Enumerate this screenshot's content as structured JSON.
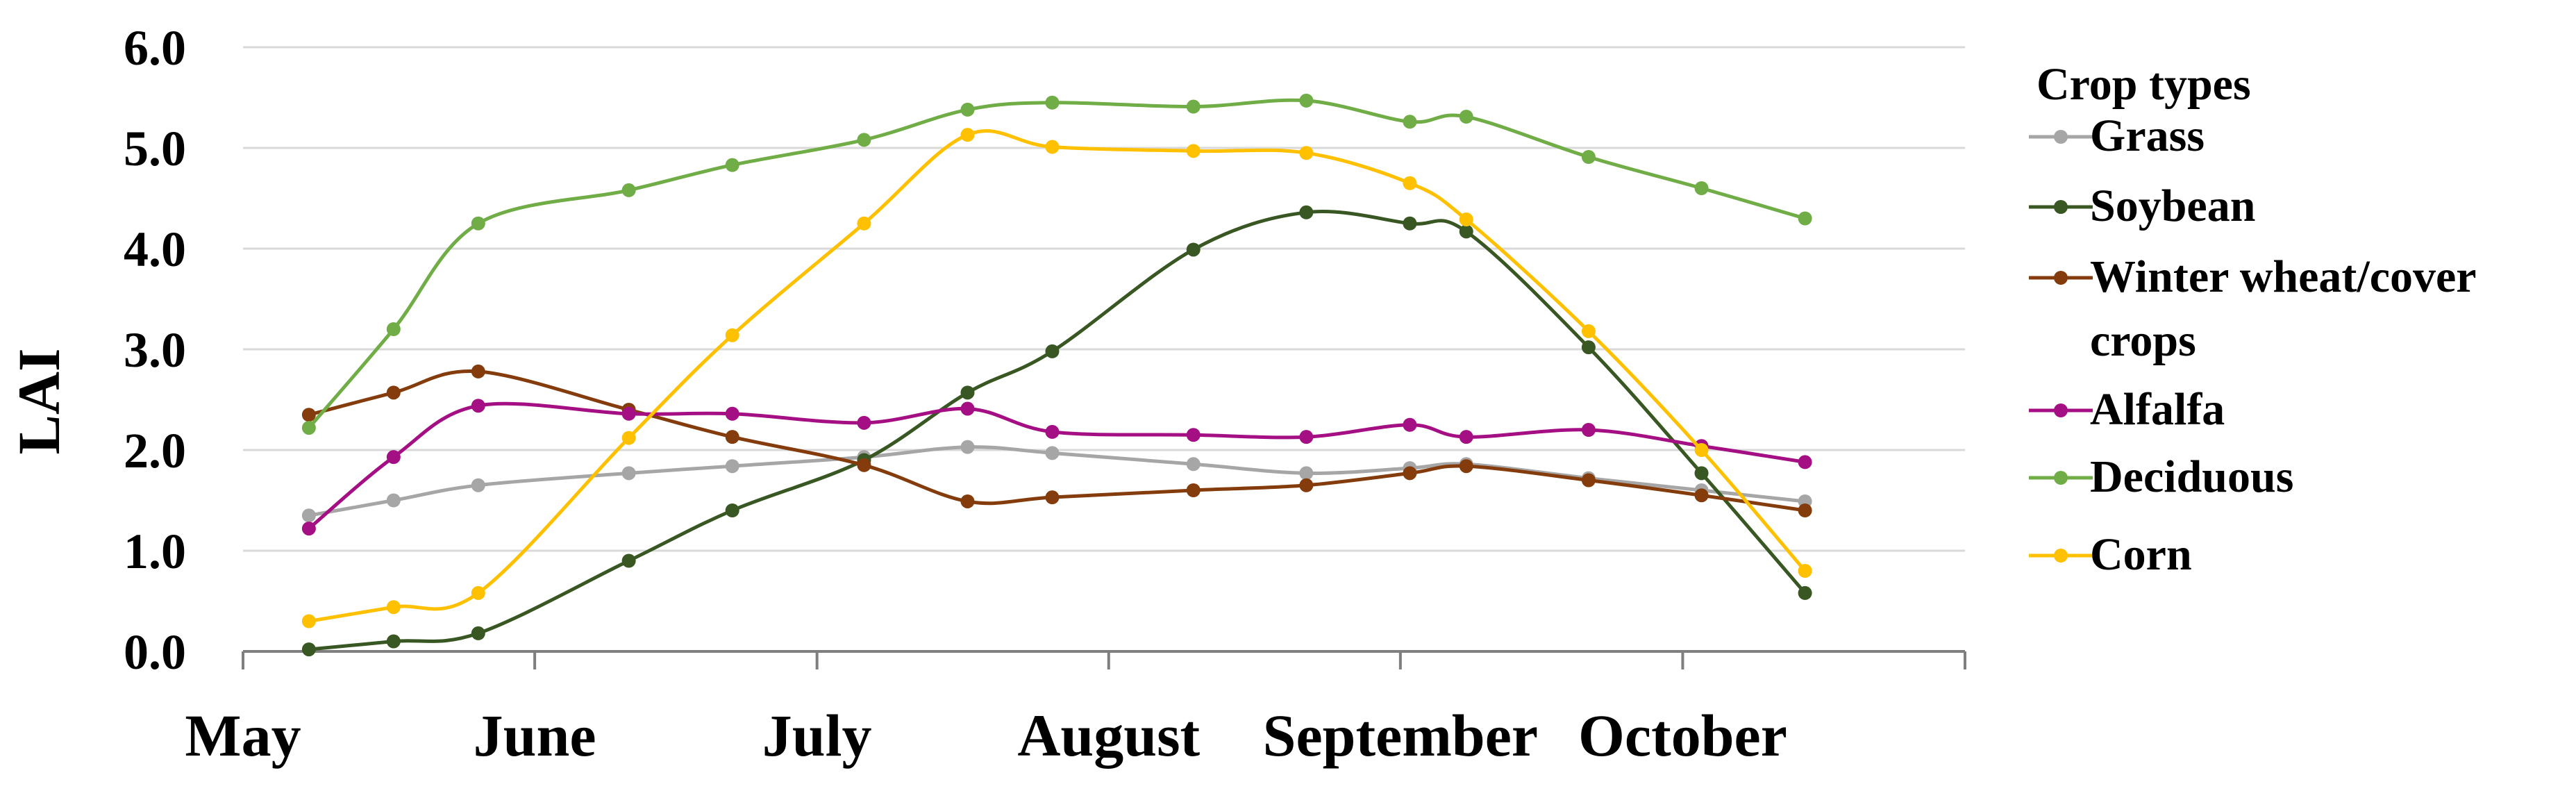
{
  "chart_data": {
    "type": "line",
    "title": "",
    "xlabel": "",
    "ylabel": "LAI",
    "ylim": [
      0,
      6
    ],
    "y_ticks": [
      "0.0",
      "1.0",
      "2.0",
      "3.0",
      "4.0",
      "5.0",
      "6.0"
    ],
    "x_range": [
      "2000-05-01",
      "2000-10-31"
    ],
    "month_ticks": [
      "2000-05-01",
      "2000-06-01",
      "2000-07-01",
      "2000-08-01",
      "2000-09-01",
      "2000-10-01",
      "2000-10-31"
    ],
    "x_tick_labels": [
      {
        "label": "May",
        "date": "2000-05-01"
      },
      {
        "label": "June",
        "date": "2000-06-01"
      },
      {
        "label": "July",
        "date": "2000-07-01"
      },
      {
        "label": "August",
        "date": "2000-08-01"
      },
      {
        "label": "September",
        "date": "2000-09-01"
      },
      {
        "label": "October",
        "date": "2000-10-01"
      }
    ],
    "grid": "horizontal",
    "legend": {
      "title": "Crop types",
      "position": "right"
    },
    "series": [
      {
        "name": "Grass",
        "color": "#a6a6a6",
        "x": [
          "2000-05-08",
          "2000-05-17",
          "2000-05-26",
          "2000-06-11",
          "2000-06-22",
          "2000-07-06",
          "2000-07-17",
          "2000-07-26",
          "2000-08-10",
          "2000-08-22",
          "2000-09-02",
          "2000-09-08",
          "2000-09-21",
          "2000-10-03",
          "2000-10-14"
        ],
        "y": [
          1.35,
          1.5,
          1.65,
          1.77,
          1.84,
          1.93,
          2.03,
          1.97,
          1.86,
          1.77,
          1.82,
          1.86,
          1.72,
          1.6,
          1.49
        ]
      },
      {
        "name": "Soybean",
        "color": "#385723",
        "x": [
          "2000-05-08",
          "2000-05-17",
          "2000-05-26",
          "2000-06-11",
          "2000-06-22",
          "2000-07-06",
          "2000-07-17",
          "2000-07-26",
          "2000-08-10",
          "2000-08-22",
          "2000-09-02",
          "2000-09-08",
          "2000-09-21",
          "2000-10-03",
          "2000-10-14"
        ],
        "y": [
          0.02,
          0.1,
          0.18,
          0.9,
          1.4,
          1.9,
          2.57,
          2.98,
          3.99,
          4.36,
          4.25,
          4.17,
          3.02,
          1.77,
          0.58
        ]
      },
      {
        "name": "Winter wheat/cover crops",
        "color": "#843c0c",
        "x": [
          "2000-05-08",
          "2000-05-17",
          "2000-05-26",
          "2000-06-11",
          "2000-06-22",
          "2000-07-06",
          "2000-07-17",
          "2000-07-26",
          "2000-08-10",
          "2000-08-22",
          "2000-09-02",
          "2000-09-08",
          "2000-09-21",
          "2000-10-03",
          "2000-10-14"
        ],
        "y": [
          2.35,
          2.57,
          2.78,
          2.4,
          2.13,
          1.85,
          1.49,
          1.53,
          1.6,
          1.65,
          1.77,
          1.84,
          1.7,
          1.55,
          1.4
        ]
      },
      {
        "name": "Alfalfa",
        "color": "#a50f84",
        "x": [
          "2000-05-08",
          "2000-05-17",
          "2000-05-26",
          "2000-06-11",
          "2000-06-22",
          "2000-07-06",
          "2000-07-17",
          "2000-07-26",
          "2000-08-10",
          "2000-08-22",
          "2000-09-02",
          "2000-09-08",
          "2000-09-21",
          "2000-10-03",
          "2000-10-14"
        ],
        "y": [
          1.22,
          1.93,
          2.44,
          2.36,
          2.36,
          2.27,
          2.41,
          2.18,
          2.15,
          2.13,
          2.25,
          2.13,
          2.2,
          2.04,
          1.88
        ]
      },
      {
        "name": "Deciduous",
        "color": "#70ad47",
        "x": [
          "2000-05-08",
          "2000-05-17",
          "2000-05-26",
          "2000-06-11",
          "2000-06-22",
          "2000-07-06",
          "2000-07-17",
          "2000-07-26",
          "2000-08-10",
          "2000-08-22",
          "2000-09-02",
          "2000-09-08",
          "2000-09-21",
          "2000-10-03",
          "2000-10-14"
        ],
        "y": [
          2.22,
          3.2,
          4.25,
          4.58,
          4.83,
          5.08,
          5.38,
          5.45,
          5.41,
          5.47,
          5.26,
          5.31,
          4.91,
          4.6,
          4.3
        ]
      },
      {
        "name": "Corn",
        "color": "#ffc000",
        "x": [
          "2000-05-08",
          "2000-05-17",
          "2000-05-26",
          "2000-06-11",
          "2000-06-22",
          "2000-07-06",
          "2000-07-17",
          "2000-07-26",
          "2000-08-10",
          "2000-08-22",
          "2000-09-02",
          "2000-09-08",
          "2000-09-21",
          "2000-10-03",
          "2000-10-14"
        ],
        "y": [
          0.3,
          0.44,
          0.58,
          2.12,
          3.14,
          4.25,
          5.13,
          5.01,
          4.97,
          4.95,
          4.65,
          4.29,
          3.18,
          2.0,
          0.8
        ]
      }
    ]
  }
}
